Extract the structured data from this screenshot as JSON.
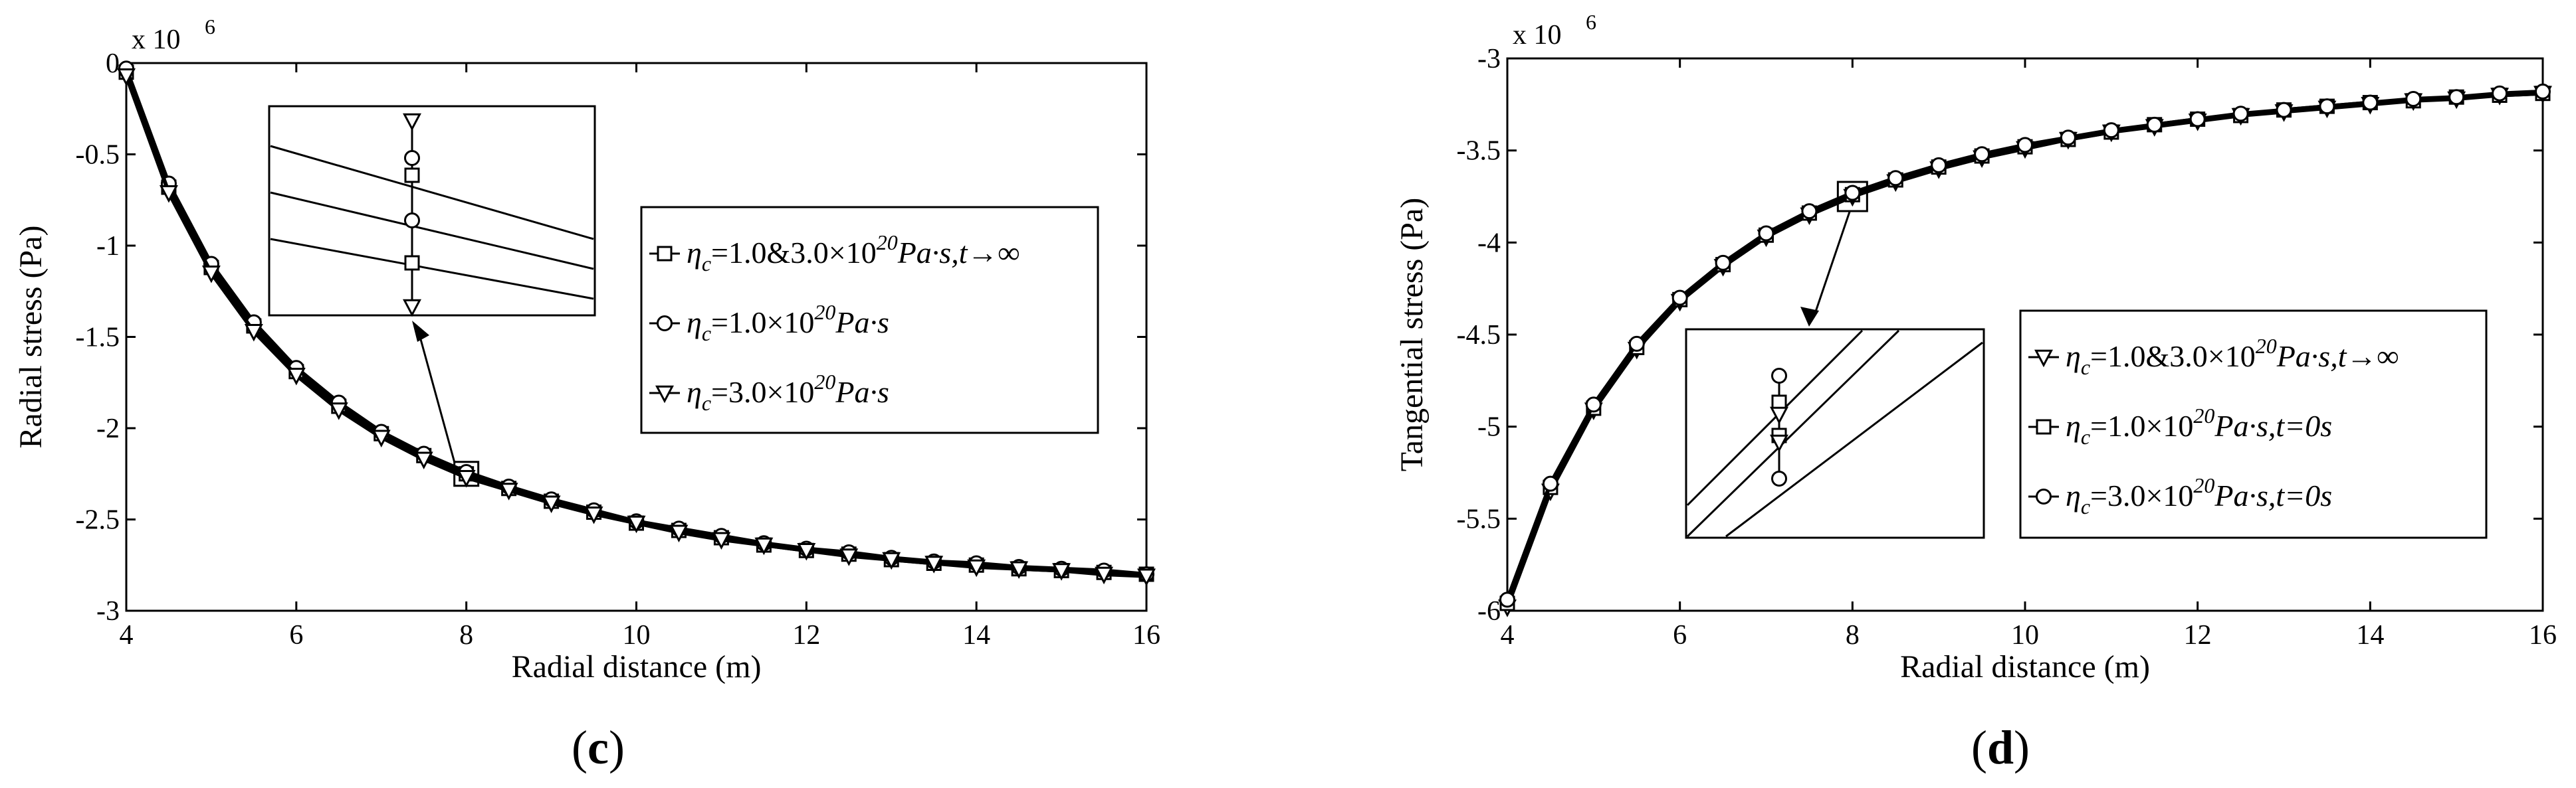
{
  "chart_data": [
    {
      "type": "line",
      "panel_label": "c",
      "xlabel": "Radial distance (m)",
      "ylabel": "Radial stress (Pa)",
      "exponent_label": "x 10",
      "exponent_power": "6",
      "xlim": [
        4,
        16
      ],
      "ylim": [
        -3,
        0
      ],
      "xticks": [
        "4",
        "6",
        "8",
        "10",
        "12",
        "14",
        "16"
      ],
      "yticks": [
        "0",
        "-0.5",
        "-1",
        "-1.5",
        "-2",
        "-2.5",
        "-3"
      ],
      "x": [
        4,
        4.5,
        5,
        5.5,
        6,
        6.5,
        7,
        7.5,
        8,
        8.5,
        9,
        9.5,
        10,
        10.5,
        11,
        11.5,
        12,
        12.5,
        13,
        13.5,
        14,
        14.5,
        15,
        15.5,
        16
      ],
      "series": [
        {
          "name": "ηc=1.0&3.0×10^20 Pa·s, t→∞",
          "marker": "square",
          "values": [
            -0.05,
            -0.68,
            -1.12,
            -1.44,
            -1.69,
            -1.88,
            -2.03,
            -2.15,
            -2.25,
            -2.33,
            -2.4,
            -2.46,
            -2.52,
            -2.56,
            -2.6,
            -2.64,
            -2.67,
            -2.69,
            -2.72,
            -2.74,
            -2.75,
            -2.77,
            -2.78,
            -2.79,
            -2.8
          ]
        },
        {
          "name": "ηc=1.0×10^20 Pa·s",
          "marker": "circle",
          "values": [
            -0.03,
            -0.66,
            -1.1,
            -1.42,
            -1.67,
            -1.86,
            -2.02,
            -2.14,
            -2.24,
            -2.32,
            -2.39,
            -2.45,
            -2.51,
            -2.55,
            -2.59,
            -2.63,
            -2.66,
            -2.68,
            -2.71,
            -2.73,
            -2.74,
            -2.76,
            -2.77,
            -2.78,
            -2.8
          ]
        },
        {
          "name": "ηc=3.0×10^20 Pa·s",
          "marker": "triangle-down",
          "values": [
            -0.07,
            -0.71,
            -1.15,
            -1.47,
            -1.71,
            -1.9,
            -2.05,
            -2.17,
            -2.27,
            -2.34,
            -2.41,
            -2.47,
            -2.52,
            -2.57,
            -2.61,
            -2.64,
            -2.67,
            -2.7,
            -2.72,
            -2.74,
            -2.76,
            -2.77,
            -2.78,
            -2.8,
            -2.81
          ]
        }
      ],
      "legend": [
        {
          "pre": "η",
          "sub": "c",
          "mid": "=1.0&3.0×10",
          "sup": "20",
          "post": "Pa·s,t→∞",
          "marker": "square"
        },
        {
          "pre": "η",
          "sub": "c",
          "mid": "=1.0×10",
          "sup": "20",
          "post": "Pa·s",
          "marker": "circle"
        },
        {
          "pre": "η",
          "sub": "c",
          "mid": "=3.0×10",
          "sup": "20",
          "post": "Pa·s",
          "marker": "triangle-down"
        }
      ],
      "legend_position": "center-right",
      "zoom_at_x": 8
    },
    {
      "type": "line",
      "panel_label": "d",
      "xlabel": "Radial distance (m)",
      "ylabel": "Tangential stress (Pa)",
      "exponent_label": "x 10",
      "exponent_power": "6",
      "xlim": [
        4,
        16
      ],
      "ylim": [
        -6,
        -3
      ],
      "xticks": [
        "4",
        "6",
        "8",
        "10",
        "12",
        "14",
        "16"
      ],
      "yticks": [
        "-3",
        "-3.5",
        "-4",
        "-4.5",
        "-5",
        "-5.5",
        "-6"
      ],
      "x": [
        4,
        4.5,
        5,
        5.5,
        6,
        6.5,
        7,
        7.5,
        8,
        8.5,
        9,
        9.5,
        10,
        10.5,
        11,
        11.5,
        12,
        12.5,
        13,
        13.5,
        14,
        14.5,
        15,
        15.5,
        16
      ],
      "series": [
        {
          "name": "ηc=1.0&3.0×10^20 Pa·s, t→∞",
          "marker": "triangle-down",
          "values": [
            -5.98,
            -5.35,
            -4.91,
            -4.58,
            -4.32,
            -4.13,
            -3.97,
            -3.85,
            -3.75,
            -3.67,
            -3.6,
            -3.54,
            -3.49,
            -3.44,
            -3.4,
            -3.37,
            -3.34,
            -3.31,
            -3.29,
            -3.27,
            -3.25,
            -3.23,
            -3.22,
            -3.2,
            -3.19
          ]
        },
        {
          "name": "ηc=1.0×10^20 Pa·s, t=0s",
          "marker": "square",
          "values": [
            -5.96,
            -5.33,
            -4.9,
            -4.57,
            -4.31,
            -4.12,
            -3.96,
            -3.84,
            -3.74,
            -3.66,
            -3.59,
            -3.53,
            -3.48,
            -3.44,
            -3.4,
            -3.36,
            -3.33,
            -3.31,
            -3.28,
            -3.26,
            -3.24,
            -3.23,
            -3.21,
            -3.2,
            -3.19
          ]
        },
        {
          "name": "ηc=3.0×10^20 Pa·s, t=0s",
          "marker": "circle",
          "values": [
            -5.94,
            -5.31,
            -4.88,
            -4.55,
            -4.3,
            -4.11,
            -3.95,
            -3.83,
            -3.73,
            -3.65,
            -3.58,
            -3.52,
            -3.47,
            -3.43,
            -3.39,
            -3.36,
            -3.33,
            -3.3,
            -3.28,
            -3.26,
            -3.24,
            -3.22,
            -3.21,
            -3.19,
            -3.18
          ]
        }
      ],
      "legend": [
        {
          "pre": "η",
          "sub": "c",
          "mid": "=1.0&3.0×10",
          "sup": "20",
          "post": "Pa·s,t→∞",
          "marker": "triangle-down"
        },
        {
          "pre": "η",
          "sub": "c",
          "mid": "=1.0×10",
          "sup": "20",
          "post": "Pa·s,t=0s",
          "marker": "square"
        },
        {
          "pre": "η",
          "sub": "c",
          "mid": "=3.0×10",
          "sup": "20",
          "post": "Pa·s,t=0s",
          "marker": "circle"
        }
      ],
      "legend_position": "center-right",
      "zoom_at_x": 8
    }
  ]
}
